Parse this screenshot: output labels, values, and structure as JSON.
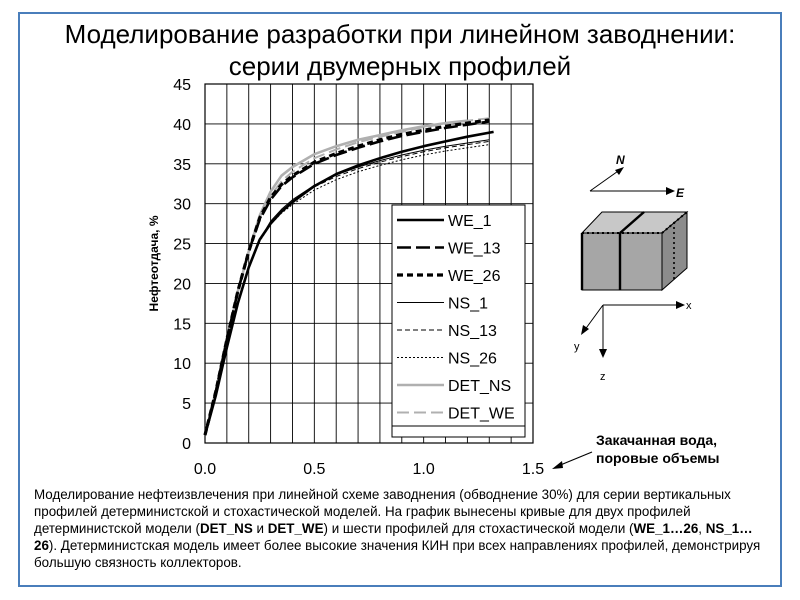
{
  "title": {
    "line1": "Моделирование разработки при линейном заводнении:",
    "line2": "серии двумерных профилей"
  },
  "annotation": {
    "line1": "Закачанная вода,",
    "line2": "поровые объемы"
  },
  "axes_3d": {
    "top_n": "N",
    "top_e": "E",
    "bottom_x": "x",
    "bottom_y": "y",
    "bottom_z": "z"
  },
  "description": {
    "p1": "Моделирование нефтеизвлечения при линейной  схеме заводнения (обводнение 30%) для серии вертикальных профилей детерминистской и стохастической моделей. На график вынесены кривые для двух профилей детерминистской модели (",
    "b1": "DET_NS",
    "p2": " и ",
    "b2": "DET_WE",
    "p3": ") и шести профилей для стохастической модели (",
    "b3": "WE_1…26",
    "p4": ", ",
    "b4": "NS_1…26",
    "p5": "). Детерминистская модель имеет более высокие значения КИН при всех направлениях профилей,  демонстрируя большую связность коллекторов."
  },
  "colors": {
    "frame": "#4a7ebb",
    "det": "#b0b0b0",
    "cube_face": "#a6a6a6",
    "cube_top": "#c8c8c8",
    "cube_side": "#8c8c8c"
  },
  "chart_data": {
    "type": "line",
    "title": "",
    "xlabel": "",
    "ylabel": "Нефтеотдача, %",
    "xlim": [
      0,
      1.5
    ],
    "ylim": [
      0,
      45
    ],
    "xticks": [
      0,
      0.5,
      1.0,
      1.5
    ],
    "xtick_labels": [
      "0.0",
      "0.5",
      "1.0",
      "1.5"
    ],
    "yticks": [
      0,
      5,
      10,
      15,
      20,
      25,
      30,
      35,
      40,
      45
    ],
    "x_minor_step": 0.1,
    "grid": true,
    "legend_position": "right-inside",
    "series": [
      {
        "name": "WE_1",
        "style": "solid-thick",
        "color": "#000000",
        "x": [
          0,
          0.05,
          0.1,
          0.15,
          0.2,
          0.25,
          0.3,
          0.35,
          0.4,
          0.5,
          0.6,
          0.7,
          0.8,
          0.9,
          1.0,
          1.1,
          1.2,
          1.32
        ],
        "y": [
          1,
          6,
          12,
          17.5,
          22,
          25.5,
          27.5,
          29,
          30.2,
          32.2,
          33.7,
          34.8,
          35.7,
          36.5,
          37.2,
          37.8,
          38.4,
          39
        ]
      },
      {
        "name": "WE_13",
        "style": "long-dash",
        "color": "#000000",
        "x": [
          0,
          0.05,
          0.1,
          0.15,
          0.2,
          0.25,
          0.3,
          0.35,
          0.4,
          0.5,
          0.6,
          0.7,
          0.8,
          0.9,
          1.0,
          1.1,
          1.2,
          1.3
        ],
        "y": [
          1,
          6.5,
          13,
          19,
          24,
          28,
          30.5,
          32.2,
          33.3,
          35,
          36.1,
          37,
          37.8,
          38.5,
          39,
          39.5,
          39.9,
          40.3
        ]
      },
      {
        "name": "WE_26",
        "style": "thick-dash",
        "color": "#000000",
        "x": [
          0,
          0.05,
          0.1,
          0.15,
          0.2,
          0.25,
          0.3,
          0.35,
          0.4,
          0.5,
          0.6,
          0.7,
          0.8,
          0.9,
          1.0,
          1.1,
          1.2,
          1.3
        ],
        "y": [
          1,
          6.5,
          13,
          19,
          24,
          28.2,
          30.8,
          32.4,
          33.5,
          35.2,
          36.3,
          37.2,
          38,
          38.7,
          39.2,
          39.7,
          40.1,
          40.5
        ]
      },
      {
        "name": "NS_1",
        "style": "thin",
        "color": "#000000",
        "x": [
          0,
          0.05,
          0.1,
          0.15,
          0.2,
          0.25,
          0.3,
          0.35,
          0.4,
          0.5,
          0.6,
          0.7,
          0.8,
          0.9,
          1.0,
          1.1,
          1.2,
          1.3
        ],
        "y": [
          1,
          6,
          12,
          17.5,
          22,
          25.5,
          27.8,
          29.3,
          30.5,
          32.3,
          33.6,
          34.6,
          35.4,
          36.1,
          36.7,
          37.2,
          37.6,
          38
        ]
      },
      {
        "name": "NS_13",
        "style": "thin-dash",
        "color": "#000000",
        "x": [
          0,
          0.05,
          0.1,
          0.15,
          0.2,
          0.25,
          0.3,
          0.35,
          0.4,
          0.5,
          0.6,
          0.7,
          0.8,
          0.9,
          1.0,
          1.1,
          1.2,
          1.3
        ],
        "y": [
          1,
          6,
          12,
          17.5,
          22,
          25.5,
          27.7,
          29.1,
          30.3,
          32.1,
          33.4,
          34.4,
          35.2,
          35.9,
          36.5,
          37,
          37.4,
          37.8
        ]
      },
      {
        "name": "NS_26",
        "style": "dotted",
        "color": "#000000",
        "x": [
          0,
          0.05,
          0.1,
          0.15,
          0.2,
          0.25,
          0.3,
          0.35,
          0.4,
          0.5,
          0.6,
          0.7,
          0.8,
          0.9,
          1.0,
          1.1,
          1.2,
          1.3
        ],
        "y": [
          1,
          6,
          12,
          17.5,
          22,
          25.3,
          27.4,
          28.8,
          29.9,
          31.7,
          33,
          34,
          34.8,
          35.5,
          36.1,
          36.6,
          37,
          37.4
        ]
      },
      {
        "name": "DET_NS",
        "style": "solid-gray",
        "color": "#b0b0b0",
        "x": [
          0,
          0.05,
          0.1,
          0.15,
          0.2,
          0.25,
          0.3,
          0.35,
          0.4,
          0.5,
          0.6,
          0.7,
          0.8,
          0.9,
          1.0,
          1.1,
          1.2
        ],
        "y": [
          1,
          6.5,
          13,
          19,
          24,
          28.5,
          31.5,
          33.5,
          34.6,
          36.2,
          37.2,
          38,
          38.6,
          39.2,
          39.7,
          40.1,
          40.4
        ]
      },
      {
        "name": "DET_WE",
        "style": "dash-gray",
        "color": "#b0b0b0",
        "x": [
          0,
          0.05,
          0.1,
          0.15,
          0.2,
          0.25,
          0.3,
          0.35,
          0.4,
          0.5,
          0.6,
          0.7,
          0.8,
          0.9,
          1.0,
          1.1,
          1.2,
          1.3
        ],
        "y": [
          1,
          6.5,
          13,
          19,
          24,
          28.3,
          31,
          32.8,
          34,
          35.7,
          36.8,
          37.7,
          38.4,
          39,
          39.6,
          40,
          40.4,
          40.7
        ]
      }
    ]
  }
}
